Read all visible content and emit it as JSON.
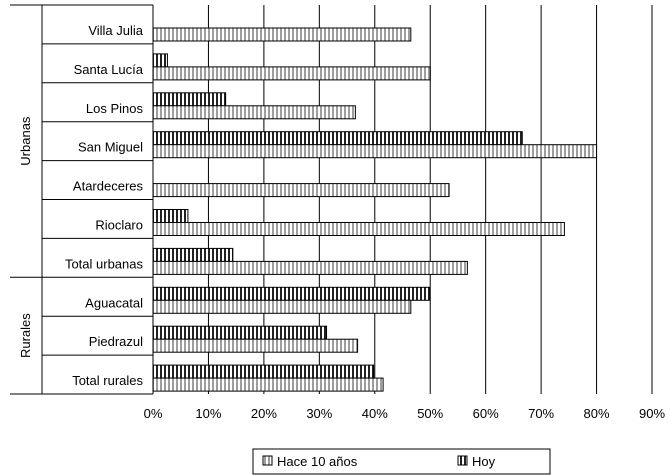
{
  "chart_data": {
    "type": "bar",
    "orientation": "horizontal",
    "categories": [
      "Villa Julia",
      "Santa Lucía",
      "Los Pinos",
      "San Miguel",
      "Atardeceres",
      "Rioclaro",
      "Total urbanas",
      "Aguacatal",
      "Piedrazul",
      "Total rurales"
    ],
    "groups": [
      {
        "name": "Urbanas",
        "categories": [
          "Villa Julia",
          "Santa Lucía",
          "Los Pinos",
          "San Miguel",
          "Atardeceres",
          "Rioclaro",
          "Total urbanas"
        ]
      },
      {
        "name": "Rurales",
        "categories": [
          "Aguacatal",
          "Piedrazul",
          "Total rurales"
        ]
      }
    ],
    "series": [
      {
        "name": "Hoy",
        "values": [
          0,
          2.6,
          13.1,
          66.6,
          0,
          6.3,
          14.4,
          49.9,
          31.3,
          39.8
        ]
      },
      {
        "name": "Hace 10 años",
        "values": [
          46.5,
          50.0,
          36.5,
          80.0,
          53.4,
          74.2,
          56.7,
          46.5,
          36.9,
          41.5
        ]
      }
    ],
    "xlim": [
      0,
      90
    ],
    "xticks": [
      "0%",
      "10%",
      "20%",
      "30%",
      "40%",
      "50%",
      "60%",
      "70%",
      "80%",
      "90%"
    ],
    "grid": true,
    "legend_position": "bottom",
    "legend_order": [
      "Hace 10 años",
      "Hoy"
    ],
    "colors": {
      "hoy_stripe": "#222222",
      "hace_stripe": "#9e9e9e",
      "bar_border": "#000000",
      "grid": "#000000"
    }
  }
}
